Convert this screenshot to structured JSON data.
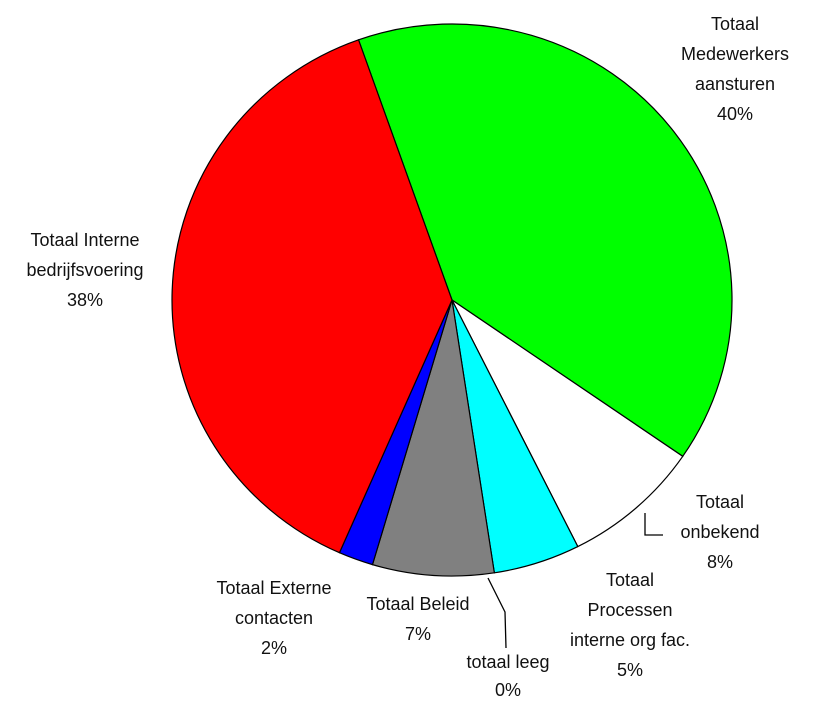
{
  "chart_data": {
    "type": "pie",
    "title": "",
    "start_angle_deg": -19.5,
    "direction": "clockwise",
    "slices": [
      {
        "label": "Totaal Medewerkers aansturen",
        "label_lines": [
          "Totaal",
          "Medewerkers",
          "aansturen",
          "40%"
        ],
        "value": 40,
        "color": "#00ff00"
      },
      {
        "label": "Totaal onbekend",
        "label_lines": [
          "Totaal",
          "onbekend",
          "8%"
        ],
        "value": 8,
        "color": "#ffffff"
      },
      {
        "label": "Totaal Processen interne org fac.",
        "label_lines": [
          "Totaal",
          "Processen",
          "interne org fac.",
          "5%"
        ],
        "value": 5,
        "color": "#00ffff"
      },
      {
        "label": "totaal leeg",
        "label_lines": [
          "totaal leeg",
          "0%"
        ],
        "value": 0,
        "color": "#ffff00"
      },
      {
        "label": "Totaal Beleid",
        "label_lines": [
          "Totaal Beleid",
          "7%"
        ],
        "value": 7,
        "color": "#808080"
      },
      {
        "label": "Totaal Externe contacten",
        "label_lines": [
          "Totaal Externe",
          "contacten",
          "2%"
        ],
        "value": 2,
        "color": "#0000ff"
      },
      {
        "label": "Totaal Interne bedrijfsvoering",
        "label_lines": [
          "Totaal Interne",
          "bedrijfsvoering",
          "38%"
        ],
        "value": 38,
        "color": "#ff0000"
      }
    ]
  }
}
